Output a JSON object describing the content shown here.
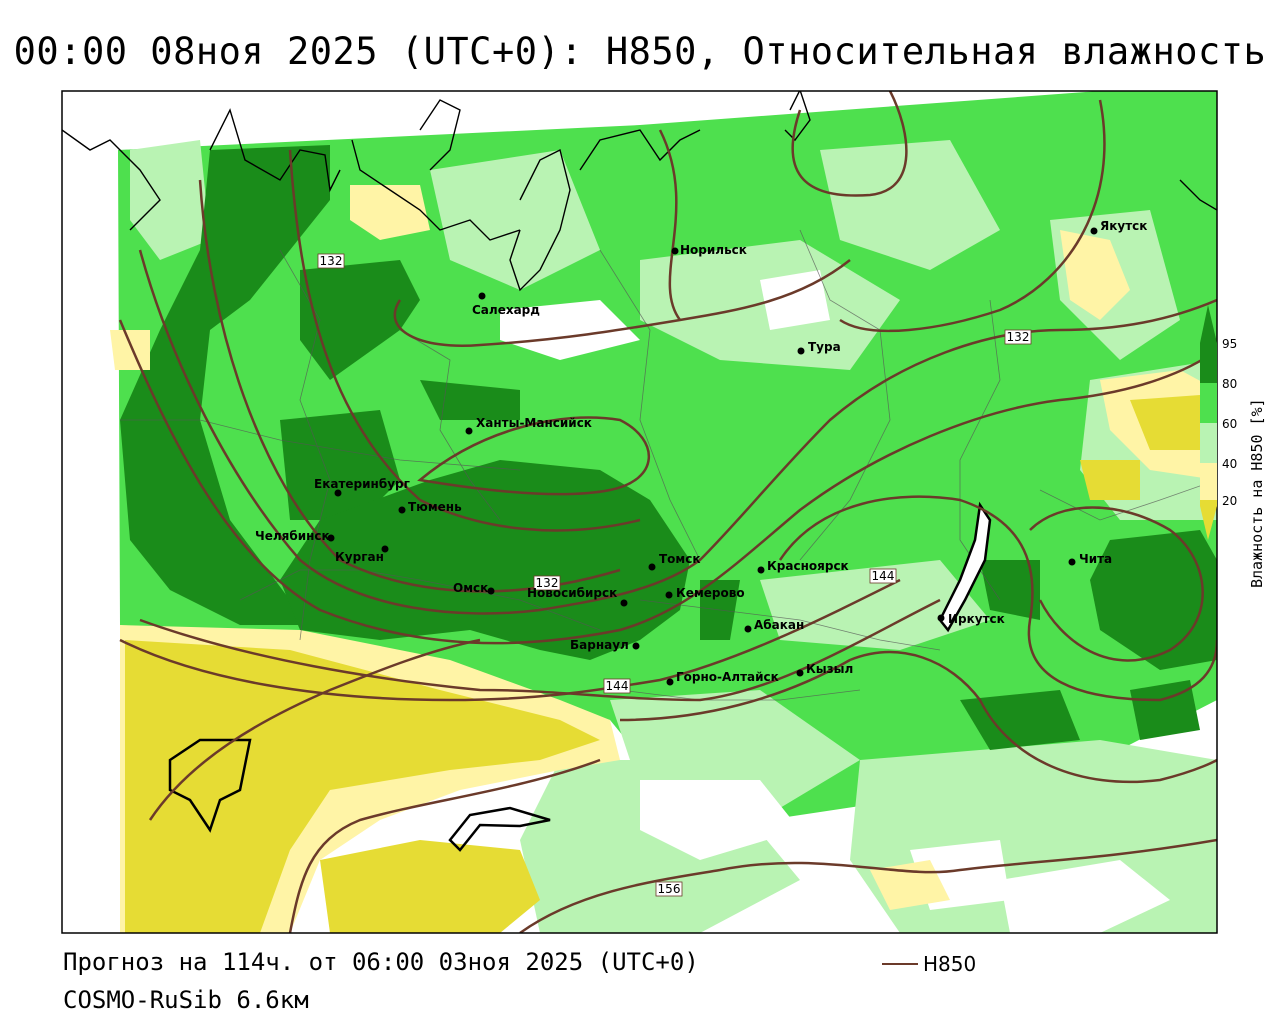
{
  "title": "00:00 08ноя 2025 (UTC+0): H850, Относительная влажность",
  "footer": {
    "forecast": "Прогноз на 114ч. от 06:00 03ноя 2025 (UTC+0)",
    "model": "COSMO-RuSib 6.6км",
    "legend_label": "H850"
  },
  "colorbar": {
    "title": "Влажность на H850 [%]",
    "ticks": [
      "95",
      "80",
      "60",
      "40",
      "20"
    ],
    "colors": [
      "#1a8c1a",
      "#4ee04e",
      "#b9f3b3",
      "#ffffff",
      "#fff4a6",
      "#e6dc34"
    ]
  },
  "contour_labels": [
    "132",
    "132",
    "132",
    "144",
    "144",
    "156"
  ],
  "cities": [
    {
      "name": "Якутск"
    },
    {
      "name": "Норильск"
    },
    {
      "name": "Салехард"
    },
    {
      "name": "Тура"
    },
    {
      "name": "Ханты-Мансийск"
    },
    {
      "name": "Екатеринбург"
    },
    {
      "name": "Тюмень"
    },
    {
      "name": "Челябинск"
    },
    {
      "name": "Курган"
    },
    {
      "name": "Омск"
    },
    {
      "name": "Новосибирск"
    },
    {
      "name": "Томск"
    },
    {
      "name": "Кемерово"
    },
    {
      "name": "Красноярск"
    },
    {
      "name": "Барнаул"
    },
    {
      "name": "Абакан"
    },
    {
      "name": "Горно-Алтайск"
    },
    {
      "name": "Кызыл"
    },
    {
      "name": "Иркутск"
    },
    {
      "name": "Чита"
    }
  ],
  "colors": {
    "contour": "#6b3a2a",
    "dark_green": "#1a8c1a",
    "green": "#4ee04e",
    "light_green": "#b9f3b3",
    "light_yellow": "#fff4a6",
    "yellow": "#e6dc34"
  }
}
